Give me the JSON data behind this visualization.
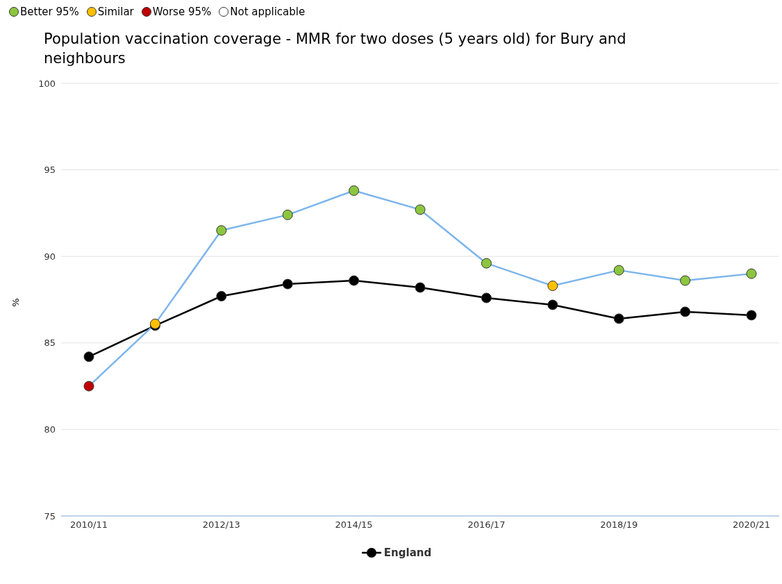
{
  "chart_data": {
    "type": "line",
    "title": "Population vaccination coverage - MMR for two doses (5 years old) for Bury and neighbours",
    "ylabel": "%",
    "categories": [
      "2010/11",
      null,
      "2012/13",
      null,
      "2014/15",
      null,
      "2016/17",
      null,
      "2018/19",
      null,
      "2020/21"
    ],
    "series": [
      {
        "name": "Better 95%",
        "type": "scatter",
        "color": "#8cc63f",
        "values": [
          null,
          null,
          null,
          null,
          null,
          null,
          null,
          null,
          null,
          null,
          null
        ]
      },
      {
        "name": "Similar",
        "type": "scatter",
        "color": "#ffc000",
        "values": [
          null,
          null,
          null,
          null,
          null,
          null,
          null,
          null,
          null,
          null,
          null
        ]
      },
      {
        "name": "Worse 95%",
        "type": "scatter",
        "color": "#c00000",
        "values": [
          null,
          null,
          null,
          null,
          null,
          null,
          null,
          null,
          null,
          null,
          null
        ]
      },
      {
        "name": "Not applicable",
        "type": "scatter",
        "color": "#ffffff",
        "values": [
          null,
          null,
          null,
          null,
          null,
          null,
          null,
          null,
          null,
          null,
          null
        ]
      },
      {
        "color": "#7cb5ec",
        "colors": [
          "#c00000",
          "#ffc000",
          "#8cc63f",
          "#8cc63f",
          "#8cc63f",
          "#8cc63f",
          "#8cc63f",
          "#ffc000",
          "#8cc63f",
          "#8cc63f",
          "#8cc63f"
        ],
        "values": [
          82.5,
          86.1,
          91.5,
          92.4,
          93.8,
          92.7,
          89.6,
          88.3,
          89.2,
          88.6,
          89.0
        ]
      },
      {
        "name": "England",
        "color": "#000000",
        "values": [
          84.2,
          86.0,
          87.7,
          88.4,
          88.6,
          88.2,
          87.6,
          87.2,
          86.4,
          86.8,
          86.6
        ]
      }
    ],
    "ylim": [
      75,
      100
    ],
    "yticks": [
      75,
      80,
      85,
      90,
      95,
      100
    ],
    "grid": "y",
    "marker": "circle",
    "line_style": "solid",
    "legend": "top left"
  }
}
